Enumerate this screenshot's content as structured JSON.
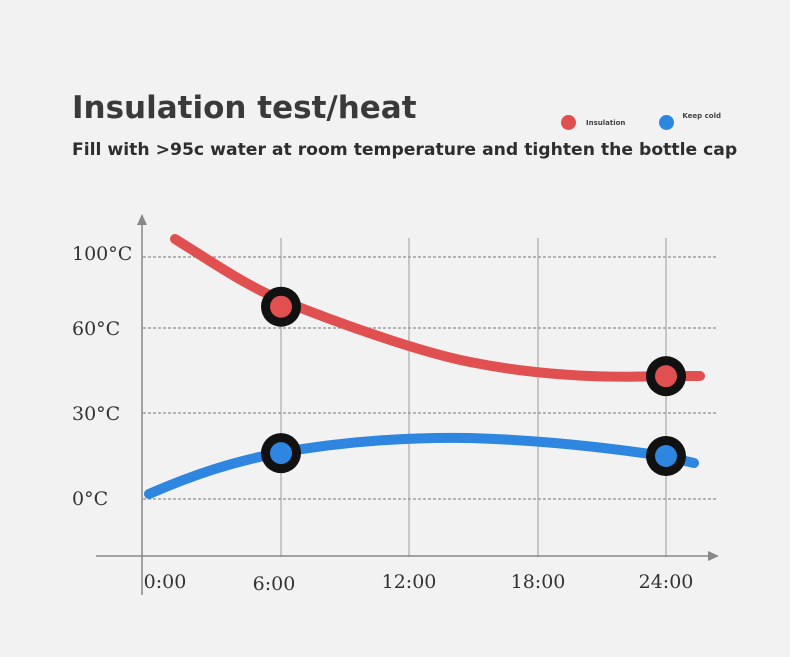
{
  "title": "Insulation test/heat",
  "subtitle": "Fill with >95c water at room temperature and tighten the bottle cap",
  "legend": [
    {
      "label": "Insulation",
      "color": "#e05050"
    },
    {
      "label": "Keep cold",
      "color": "#2f86e0"
    }
  ],
  "chart_data": {
    "type": "line",
    "title": "Insulation test/heat",
    "subtitle": "Fill with >95c water at room temperature and tighten the bottle cap",
    "xlabel": "",
    "ylabel": "",
    "x_tick_labels": [
      "0:00",
      "6:00",
      "12:00",
      "18:00",
      "24:00"
    ],
    "y_tick_labels": [
      "0°C",
      "30°C",
      "60°C",
      "100°C"
    ],
    "grid": true,
    "legend_position": "top-right",
    "series": [
      {
        "name": "Insulation",
        "color": "#e05050",
        "markers": [
          {
            "x": "6:00",
            "y": 72
          },
          {
            "x": "24:00",
            "y": 43
          }
        ]
      },
      {
        "name": "Keep cold",
        "color": "#2f86e0",
        "markers": [
          {
            "x": "6:00",
            "y": 16
          },
          {
            "x": "24:00",
            "y": 15
          }
        ]
      }
    ]
  }
}
